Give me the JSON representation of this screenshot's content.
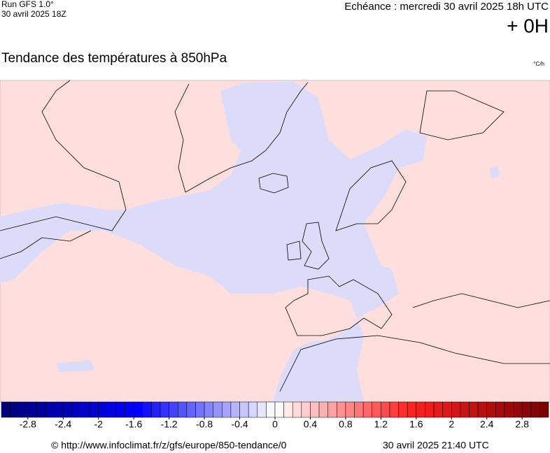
{
  "header": {
    "run": "Run GFS 1.0°",
    "run_date": "30 avril 2025 18Z",
    "echeance": "Echéance : mercredi 30 avril 2025 18h UTC",
    "offset": "+ 0H"
  },
  "title": "Tendance des températures à 850hPa",
  "unit": "°C/h",
  "colorbar": {
    "lim": [
      -3.1,
      3.1
    ],
    "step": 0.1,
    "ticks": [
      -2.8,
      -2.4,
      -2,
      -1.6,
      -1.2,
      -0.8,
      -0.4,
      0,
      0.4,
      0.8,
      1.2,
      1.6,
      2,
      2.4,
      2.8
    ],
    "low_color": "#00007a",
    "mid_low_color": "#0000ff",
    "zero_color": "#ffffff",
    "mid_high_color": "#ff2020",
    "high_color": "#7a0000"
  },
  "footer": {
    "url": "© http://www.infoclimat.fr/z/gfs/europe/850-tendance/0",
    "generated": "30 avril 2025 21:40 UTC"
  }
}
